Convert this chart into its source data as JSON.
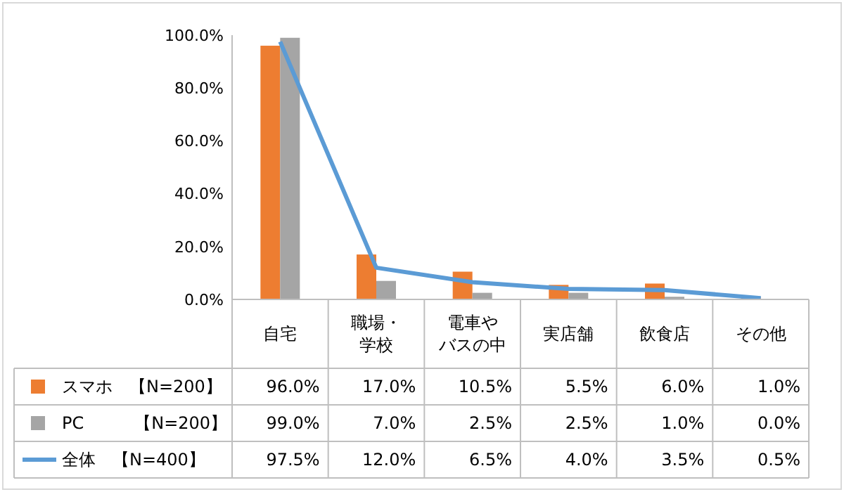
{
  "chart_data": {
    "type": "bar",
    "categories": [
      "自宅",
      "職場・学校",
      "電車やバスの中",
      "実店舗",
      "飲食店",
      "その他"
    ],
    "series": [
      {
        "name": "スマホ　【N=200】",
        "color": "#ed7d31",
        "values": [
          96.0,
          17.0,
          10.5,
          5.5,
          6.0,
          1.0
        ],
        "value_labels": [
          "96.0%",
          "17.0%",
          "10.5%",
          "5.5%",
          "6.0%",
          "1.0%"
        ]
      },
      {
        "name": "PC　　　【N=200】",
        "color": "#a5a5a5",
        "values": [
          99.0,
          7.0,
          2.5,
          2.5,
          1.0,
          0.0
        ],
        "value_labels": [
          "99.0%",
          "7.0%",
          "2.5%",
          "2.5%",
          "1.0%",
          "0.0%"
        ]
      },
      {
        "name": "全体　【N=400】",
        "type": "line",
        "color": "#5b9bd5",
        "values": [
          97.5,
          12.0,
          6.5,
          4.0,
          3.5,
          0.5
        ],
        "value_labels": [
          "97.5%",
          "12.0%",
          "6.5%",
          "4.0%",
          "3.5%",
          "0.5%"
        ]
      }
    ],
    "ylim": [
      0,
      100
    ],
    "yticks": [
      {
        "value": 0,
        "label": "0.0%"
      },
      {
        "value": 20,
        "label": "20.0%"
      },
      {
        "value": 40,
        "label": "40.0%"
      },
      {
        "value": 60,
        "label": "60.0%"
      },
      {
        "value": 80,
        "label": "80.0%"
      },
      {
        "value": 100,
        "label": "100.0%"
      }
    ],
    "grid": false,
    "legend": "bottom",
    "marker": "none",
    "line_style": "solid"
  }
}
